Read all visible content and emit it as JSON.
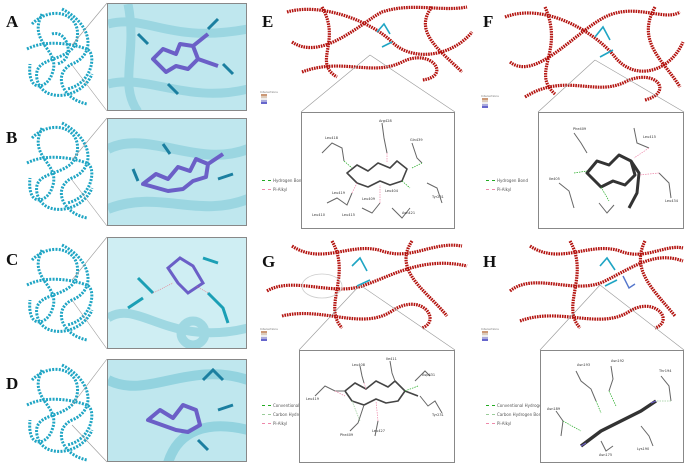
{
  "panels": {
    "A": {
      "letter": "A"
    },
    "B": {
      "letter": "B"
    },
    "C": {
      "letter": "C"
    },
    "D": {
      "letter": "D"
    },
    "E": {
      "letter": "E",
      "legend": [
        "Hydrogen Bond",
        "Pi-Alkyl"
      ],
      "residues": [
        "Leu418",
        "Arg428",
        "Gln439",
        "Leu419",
        "Leu409",
        "Leu404",
        "Leu410",
        "Leu415",
        "Asn421",
        "Tyr231"
      ]
    },
    "F": {
      "letter": "F",
      "legend": [
        "Hydrogen Bond",
        "Pi-Alkyl"
      ],
      "residues": [
        "Phe409",
        "Leu415",
        "Ile405",
        "Leu434"
      ]
    },
    "G": {
      "letter": "G",
      "legend": [
        "Conventional Hydrogen Bond",
        "Carbon Hydrogen Bond",
        "Pi-Alkyl"
      ],
      "residues": [
        "Leu408",
        "Ile411",
        "Leu419",
        "Asp431",
        "Leu427",
        "Phe409",
        "Tyr231"
      ]
    },
    "H": {
      "letter": "H",
      "legend": [
        "Conventional Hydrogen Bond",
        "Carbon Hydrogen Bond",
        "Pi-Alkyl"
      ],
      "residues": [
        "Asn193",
        "Asn192",
        "Thr194",
        "Asn189",
        "Lys190",
        "Asn175"
      ]
    }
  },
  "colors": {
    "ribbon_cyan": "#1fa5c4",
    "ribbon_red": "#b3130f",
    "ligand_purple": "#6b5fc7",
    "zoom_bg": "#bfe7ee"
  }
}
